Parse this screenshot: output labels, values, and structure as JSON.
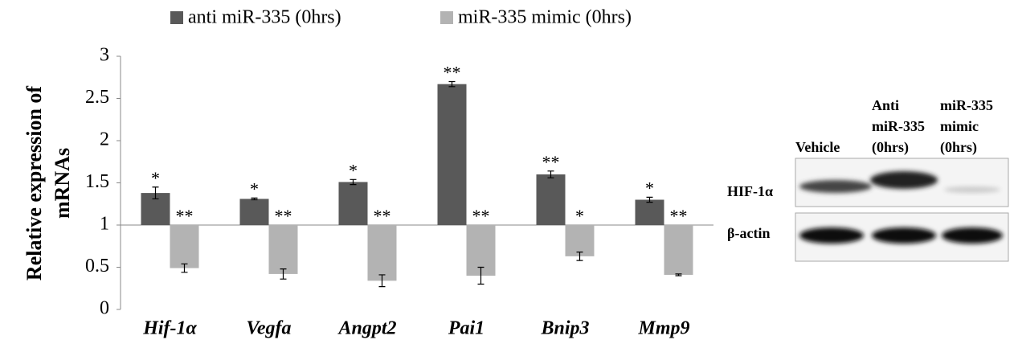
{
  "chart_data": {
    "type": "bar",
    "ylabel": [
      "Relative expression of",
      "mRNAs"
    ],
    "categories": [
      "Hif-1α",
      "Vegfa",
      "Angpt2",
      "Pai1",
      "Bnip3",
      "Mmp9"
    ],
    "baseline": 1,
    "series": [
      {
        "name": "anti miR-335 (0hrs)",
        "color": "#595959",
        "values": [
          1.38,
          1.31,
          1.51,
          2.67,
          1.6,
          1.3
        ],
        "errors": [
          0.07,
          0.01,
          0.03,
          0.03,
          0.04,
          0.03
        ],
        "annotations": [
          "*",
          "*",
          "*",
          "**",
          "**",
          "*"
        ]
      },
      {
        "name": "miR-335 mimic (0hrs)",
        "color": "#b3b3b3",
        "values": [
          0.49,
          0.42,
          0.34,
          0.4,
          0.63,
          0.41
        ],
        "errors": [
          0.05,
          0.06,
          0.07,
          0.1,
          0.05,
          0.01
        ],
        "annotations": [
          "**",
          "**",
          "**",
          "**",
          "*",
          "**"
        ]
      }
    ],
    "ylim": [
      0,
      3
    ],
    "yticks": [
      0,
      0.5,
      1,
      1.5,
      2,
      2.5,
      3
    ],
    "grid": false
  },
  "blot": {
    "lanes": [
      [
        "Vehicle"
      ],
      [
        "Anti",
        "miR-335",
        "(0hrs)"
      ],
      [
        "miR-335",
        "mimic",
        "(0hrs)"
      ]
    ],
    "rows": [
      "HIF-1α",
      "β-actin"
    ]
  }
}
